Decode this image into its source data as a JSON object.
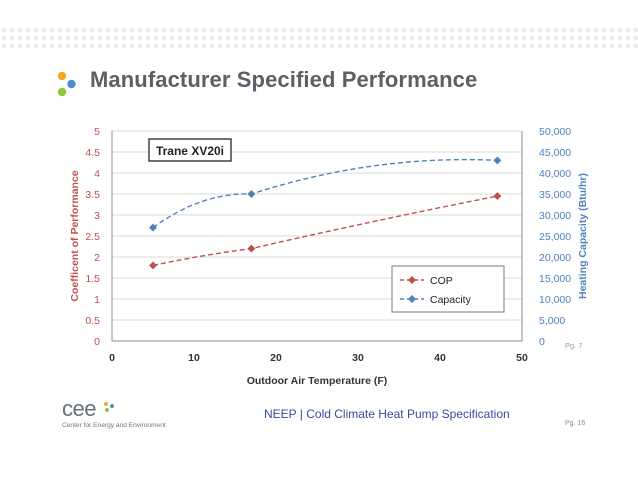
{
  "slide": {
    "title": "Manufacturer Specified Performance",
    "footer_text": "NEEP | Cold Climate Heat Pump Specification",
    "page_number": "Pg. 16",
    "logo": {
      "word": "cee",
      "tagline": "Center for Energy and Environment"
    }
  },
  "colors": {
    "cop": "#c0504d",
    "capacity": "#4f81bd",
    "title": "#5a6066",
    "bullet_orange": "#f5a623",
    "bullet_blue": "#4a90c8",
    "bullet_green": "#8dc63f"
  },
  "chart_data": {
    "type": "line",
    "title": "Trane XV20i",
    "xlabel": "Outdoor Air Temperature (F)",
    "ylabel": "Coefficent of Performance",
    "y2label": "Heating Capacity (Btu/hr)",
    "source_note": "Pg. 7",
    "xlim": [
      0,
      50
    ],
    "ylim": [
      0,
      5
    ],
    "y2lim": [
      0,
      50000
    ],
    "x_ticks": [
      "0",
      "10",
      "20",
      "30",
      "40",
      "50"
    ],
    "y_ticks": [
      "0",
      "0.5",
      "1",
      "1.5",
      "2",
      "2.5",
      "3",
      "3.5",
      "4",
      "4.5",
      "5"
    ],
    "y2_ticks": [
      "0",
      "5,000",
      "10,000",
      "15,000",
      "20,000",
      "25,000",
      "30,000",
      "35,000",
      "40,000",
      "45,000",
      "50,000"
    ],
    "legend_position": "bottom-right",
    "grid": "horizontal",
    "series": [
      {
        "name": "COP",
        "axis": "left",
        "style": "dashed",
        "x": [
          5,
          17,
          47
        ],
        "values": [
          1.8,
          2.2,
          3.45
        ]
      },
      {
        "name": "Capacity",
        "axis": "right",
        "style": "dashed",
        "x": [
          5,
          17,
          47
        ],
        "values": [
          27000,
          35000,
          43000
        ]
      }
    ]
  }
}
